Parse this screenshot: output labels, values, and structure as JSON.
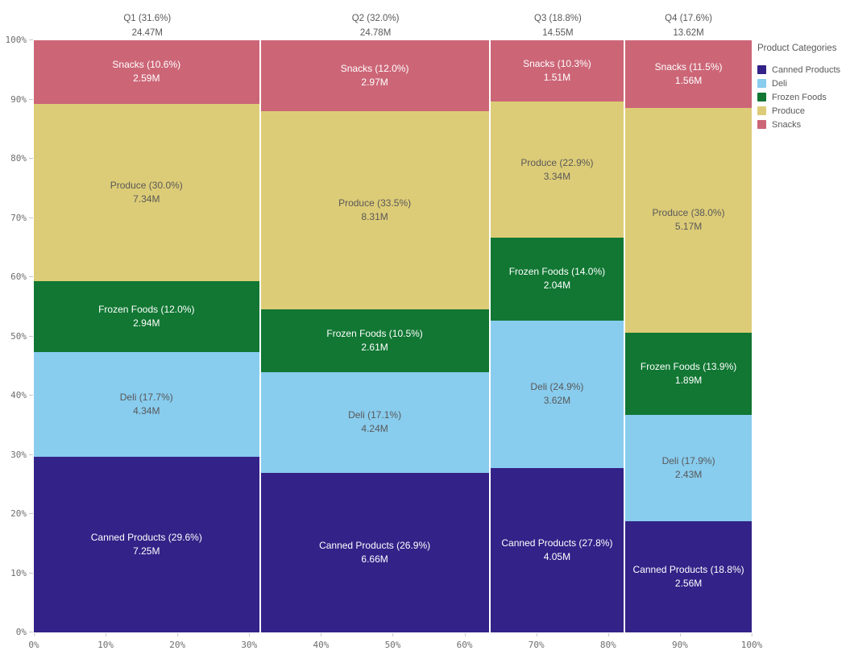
{
  "chart_data": {
    "type": "mekko",
    "legend_title": "Product Categories",
    "x_axis_ticks": [
      "0%",
      "10%",
      "20%",
      "30%",
      "40%",
      "50%",
      "60%",
      "70%",
      "80%",
      "90%",
      "100%"
    ],
    "y_axis_ticks": [
      "0%",
      "10%",
      "20%",
      "30%",
      "40%",
      "50%",
      "60%",
      "70%",
      "80%",
      "90%",
      "100%"
    ],
    "xlim": [
      0,
      100
    ],
    "ylim": [
      0,
      100
    ],
    "grid": false,
    "legend_position": "top-right",
    "stack_order": "bottom-to-top",
    "categories": [
      "Canned Products",
      "Deli",
      "Frozen Foods",
      "Produce",
      "Snacks"
    ],
    "category_colors": {
      "Canned Products": "#332288",
      "Deli": "#88CCEE",
      "Frozen Foods": "#117733",
      "Produce": "#DDCC77",
      "Snacks": "#CC6677"
    },
    "columns": [
      {
        "label": "Q1",
        "pct": 31.6,
        "pct_label": "31.6%",
        "header": "Q1 (31.6%)",
        "total": "24.47M",
        "segments": [
          {
            "category": "Canned Products",
            "pct": 29.6,
            "pct_label": "29.6%",
            "value": "7.25M"
          },
          {
            "category": "Deli",
            "pct": 17.7,
            "pct_label": "17.7%",
            "value": "4.34M"
          },
          {
            "category": "Frozen Foods",
            "pct": 12.0,
            "pct_label": "12.0%",
            "value": "2.94M"
          },
          {
            "category": "Produce",
            "pct": 30.0,
            "pct_label": "30.0%",
            "value": "7.34M"
          },
          {
            "category": "Snacks",
            "pct": 10.6,
            "pct_label": "10.6%",
            "value": "2.59M"
          }
        ]
      },
      {
        "label": "Q2",
        "pct": 32.0,
        "pct_label": "32.0%",
        "header": "Q2 (32.0%)",
        "total": "24.78M",
        "segments": [
          {
            "category": "Canned Products",
            "pct": 26.9,
            "pct_label": "26.9%",
            "value": "6.66M"
          },
          {
            "category": "Deli",
            "pct": 17.1,
            "pct_label": "17.1%",
            "value": "4.24M"
          },
          {
            "category": "Frozen Foods",
            "pct": 10.5,
            "pct_label": "10.5%",
            "value": "2.61M"
          },
          {
            "category": "Produce",
            "pct": 33.5,
            "pct_label": "33.5%",
            "value": "8.31M"
          },
          {
            "category": "Snacks",
            "pct": 12.0,
            "pct_label": "12.0%",
            "value": "2.97M"
          }
        ]
      },
      {
        "label": "Q3",
        "pct": 18.8,
        "pct_label": "18.8%",
        "header": "Q3 (18.8%)",
        "total": "14.55M",
        "segments": [
          {
            "category": "Canned Products",
            "pct": 27.8,
            "pct_label": "27.8%",
            "value": "4.05M"
          },
          {
            "category": "Deli",
            "pct": 24.9,
            "pct_label": "24.9%",
            "value": "3.62M"
          },
          {
            "category": "Frozen Foods",
            "pct": 14.0,
            "pct_label": "14.0%",
            "value": "2.04M"
          },
          {
            "category": "Produce",
            "pct": 22.9,
            "pct_label": "22.9%",
            "value": "3.34M"
          },
          {
            "category": "Snacks",
            "pct": 10.3,
            "pct_label": "10.3%",
            "value": "1.51M"
          }
        ]
      },
      {
        "label": "Q4",
        "pct": 17.6,
        "pct_label": "17.6%",
        "header": "Q4 (17.6%)",
        "total": "13.62M",
        "segments": [
          {
            "category": "Canned Products",
            "pct": 18.8,
            "pct_label": "18.8%",
            "value": "2.56M"
          },
          {
            "category": "Deli",
            "pct": 17.9,
            "pct_label": "17.9%",
            "value": "2.43M"
          },
          {
            "category": "Frozen Foods",
            "pct": 13.9,
            "pct_label": "13.9%",
            "value": "1.89M"
          },
          {
            "category": "Produce",
            "pct": 38.0,
            "pct_label": "38.0%",
            "value": "5.17M"
          },
          {
            "category": "Snacks",
            "pct": 11.5,
            "pct_label": "11.5%",
            "value": "1.56M"
          }
        ]
      }
    ],
    "colors": {
      "label_dark": "#595959",
      "label_light": "#ffffff",
      "axis_text": "#6e6e6e",
      "header_text": "#595959",
      "tick_mark": "#c6c6c6",
      "column_gap": "#ffffff"
    }
  }
}
